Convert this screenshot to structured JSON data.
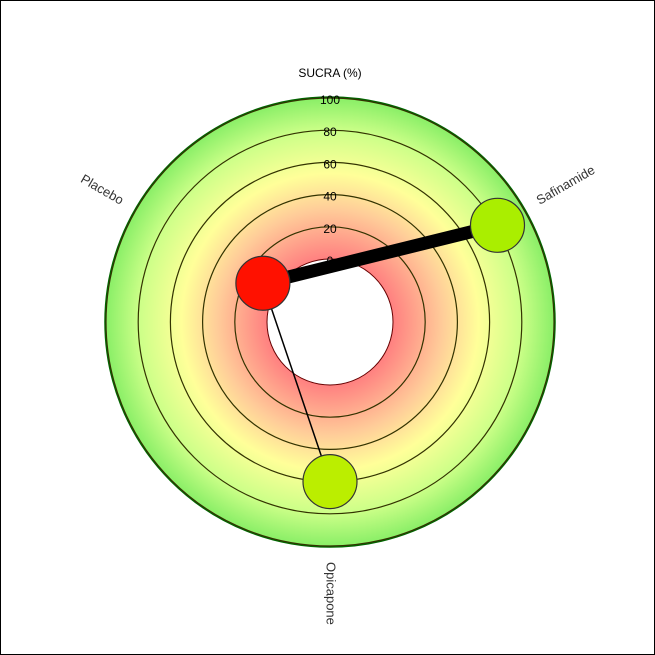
{
  "chart_data": {
    "type": "radial_network",
    "scale_title": "SUCRA (%)",
    "rlim": [
      0,
      100
    ],
    "ticks": [
      0,
      20,
      40,
      60,
      80,
      100
    ],
    "treatments": [
      {
        "name": "Safinamide",
        "angle_deg": 60,
        "sucra": 81,
        "color": "#aaee00"
      },
      {
        "name": "Opicapone",
        "angle_deg": 180,
        "sucra": 60,
        "color": "#bbee00"
      },
      {
        "name": "Placebo",
        "angle_deg": 300,
        "sucra": 9,
        "color": "#ff1100"
      }
    ],
    "edges": [
      {
        "from": "Placebo",
        "to": "Safinamide",
        "weight": "thick"
      },
      {
        "from": "Placebo",
        "to": "Opicapone",
        "weight": "thin"
      }
    ],
    "colors": {
      "low": "#ff8080",
      "mid": "#ffee99",
      "high": "#88ee66",
      "outer_border": "#006600",
      "ring_line": "#333300"
    }
  }
}
